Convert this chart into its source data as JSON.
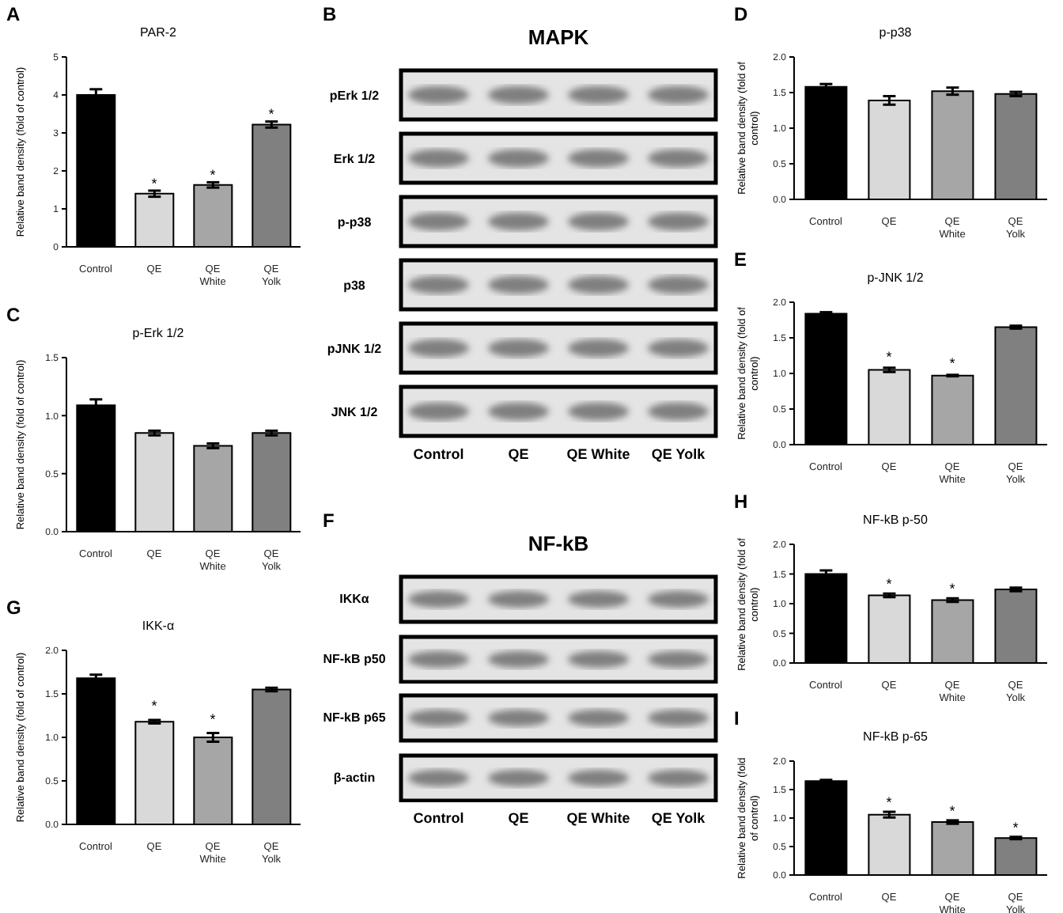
{
  "chart_data": [
    {
      "type": "bar",
      "title": "PAR-2",
      "ylabel": "Relative band density (fold of control)",
      "categories": [
        "Control",
        "QE",
        "QE White",
        "QE Yolk"
      ],
      "values": [
        4.0,
        1.4,
        1.63,
        3.22
      ],
      "errors": [
        0.15,
        0.08,
        0.07,
        0.08
      ],
      "colors": [
        "#000000",
        "#d9d9d9",
        "#a6a6a6",
        "#808080"
      ],
      "ylim": [
        0,
        5
      ],
      "yticks": [
        0,
        1,
        2,
        3,
        4,
        5
      ],
      "annotations": [
        "A",
        {
          "text": "*",
          "x": "QE",
          "y": 1.55
        },
        {
          "text": "*",
          "x": "QE White",
          "y": 1.77
        },
        {
          "text": "*",
          "x": "QE Yolk",
          "y": 3.37
        }
      ]
    },
    {
      "type": "other",
      "title": "MAPK",
      "categories": [
        "Control",
        "QE",
        "QE White",
        "QE Yolk"
      ],
      "y_categories": [
        "pErk 1/2",
        "Erk 1/2",
        "p-p38",
        "p38",
        "pJNK 1/2",
        "JNK 1/2"
      ],
      "annotations": [
        "B"
      ]
    },
    {
      "type": "bar",
      "title": "p-p38",
      "ylabel": "Relative band density (fold of control)",
      "categories": [
        "Control",
        "QE",
        "QE White",
        "QE Yolk"
      ],
      "values": [
        1.58,
        1.39,
        1.52,
        1.48
      ],
      "errors": [
        0.04,
        0.06,
        0.05,
        0.03
      ],
      "colors": [
        "#000000",
        "#d9d9d9",
        "#a6a6a6",
        "#808080"
      ],
      "ylim": [
        0,
        2
      ],
      "yticks": [
        {
          "value": 0,
          "label": "0.0"
        },
        {
          "value": 0.5,
          "label": "0.5"
        },
        {
          "value": 1,
          "label": "1.0"
        },
        {
          "value": 1.5,
          "label": "1.5"
        },
        {
          "value": 2,
          "label": "2.0"
        }
      ],
      "annotations": [
        "D"
      ]
    },
    {
      "type": "bar",
      "title": "p-Erk 1/2",
      "ylabel": "Relative band density (fold of control)",
      "categories": [
        "Control",
        "QE",
        "QE White",
        "QE Yolk"
      ],
      "values": [
        1.09,
        0.85,
        0.74,
        0.85
      ],
      "errors": [
        0.05,
        0.02,
        0.02,
        0.02
      ],
      "colors": [
        "#000000",
        "#d9d9d9",
        "#a6a6a6",
        "#808080"
      ],
      "ylim": [
        0,
        1.5
      ],
      "yticks": [
        {
          "value": 0,
          "label": "0.0"
        },
        {
          "value": 0.5,
          "label": "0.5"
        },
        {
          "value": 1,
          "label": "1.0"
        },
        {
          "value": 1.5,
          "label": "1.5"
        }
      ],
      "annotations": [
        "C"
      ]
    },
    {
      "type": "bar",
      "title": "p-JNK 1/2",
      "ylabel": "Relative band density (fold of control)",
      "categories": [
        "Control",
        "QE",
        "QE White",
        "QE Yolk"
      ],
      "values": [
        1.84,
        1.05,
        0.97,
        1.65
      ],
      "errors": [
        0.02,
        0.03,
        0.01,
        0.02
      ],
      "colors": [
        "#000000",
        "#d9d9d9",
        "#a6a6a6",
        "#808080"
      ],
      "ylim": [
        0,
        2
      ],
      "yticks": [
        {
          "value": 0,
          "label": "0.0"
        },
        {
          "value": 0.5,
          "label": "0.5"
        },
        {
          "value": 1,
          "label": "1.0"
        },
        {
          "value": 1.5,
          "label": "1.5"
        },
        {
          "value": 2,
          "label": "2.0"
        }
      ],
      "annotations": [
        "E",
        {
          "text": "*",
          "x": "QE",
          "y": 1.17
        },
        {
          "text": "*",
          "x": "QE White",
          "y": 1.08
        }
      ]
    },
    {
      "type": "bar",
      "title": "IKK-α",
      "ylabel": "Relative band density (fold of control)",
      "categories": [
        "Control",
        "QE",
        "QE White",
        "QE Yolk"
      ],
      "values": [
        1.68,
        1.18,
        1.0,
        1.55
      ],
      "errors": [
        0.04,
        0.02,
        0.05,
        0.02
      ],
      "colors": [
        "#000000",
        "#d9d9d9",
        "#a6a6a6",
        "#808080"
      ],
      "ylim": [
        0,
        2
      ],
      "yticks": [
        {
          "value": 0,
          "label": "0.0"
        },
        {
          "value": 0.5,
          "label": "0.5"
        },
        {
          "value": 1,
          "label": "1.0"
        },
        {
          "value": 1.5,
          "label": "1.5"
        },
        {
          "value": 2,
          "label": "2.0"
        }
      ],
      "annotations": [
        "G",
        {
          "text": "*",
          "x": "QE",
          "y": 1.2
        },
        {
          "text": "*",
          "x": "QE White",
          "y": 1.05
        }
      ]
    },
    {
      "type": "other",
      "title": "NF-kB",
      "categories": [
        "Control",
        "QE",
        "QE White",
        "QE Yolk"
      ],
      "y_categories": [
        "IKKα",
        "NF-kB p50",
        "NF-kB p65",
        "β-actin"
      ],
      "annotations": [
        "F"
      ]
    },
    {
      "type": "bar",
      "title": "NF-kB p-50",
      "ylabel": "Relative band density (fold of control)",
      "categories": [
        "Control",
        "QE",
        "QE White",
        "QE Yolk"
      ],
      "values": [
        1.5,
        1.14,
        1.06,
        1.24
      ],
      "errors": [
        0.06,
        0.03,
        0.03,
        0.03
      ],
      "colors": [
        "#000000",
        "#d9d9d9",
        "#a6a6a6",
        "#808080"
      ],
      "ylim": [
        0,
        2
      ],
      "yticks": [
        {
          "value": 0,
          "label": "0.0"
        },
        {
          "value": 0.5,
          "label": "0.5"
        },
        {
          "value": 1,
          "label": "1.0"
        },
        {
          "value": 1.5,
          "label": "1.5"
        },
        {
          "value": 2,
          "label": "2.0"
        }
      ],
      "annotations": [
        "H",
        {
          "text": "*",
          "x": "QE",
          "y": 1.25
        },
        {
          "text": "*",
          "x": "QE White",
          "y": 1.17
        }
      ]
    },
    {
      "type": "bar",
      "title": "NF-kB p-65",
      "ylabel": "Relative band density (fold of control)",
      "categories": [
        "Control",
        "QE",
        "QE White",
        "QE Yolk"
      ],
      "values": [
        1.65,
        1.06,
        0.93,
        0.65
      ],
      "errors": [
        0.02,
        0.05,
        0.03,
        0.02
      ],
      "colors": [
        "#000000",
        "#d9d9d9",
        "#a6a6a6",
        "#808080"
      ],
      "ylim": [
        0,
        2
      ],
      "yticks": [
        {
          "value": 0,
          "label": "0.0"
        },
        {
          "value": 0.5,
          "label": "0.5"
        },
        {
          "value": 1,
          "label": "1.0"
        },
        {
          "value": 1.5,
          "label": "1.5"
        },
        {
          "value": 2,
          "label": "2.0"
        }
      ],
      "annotations": [
        "I",
        {
          "text": "*",
          "x": "QE",
          "y": 1.19
        },
        {
          "text": "*",
          "x": "QE White",
          "y": 1.04
        },
        {
          "text": "*",
          "x": "QE Yolk",
          "y": 0.75
        }
      ]
    }
  ]
}
